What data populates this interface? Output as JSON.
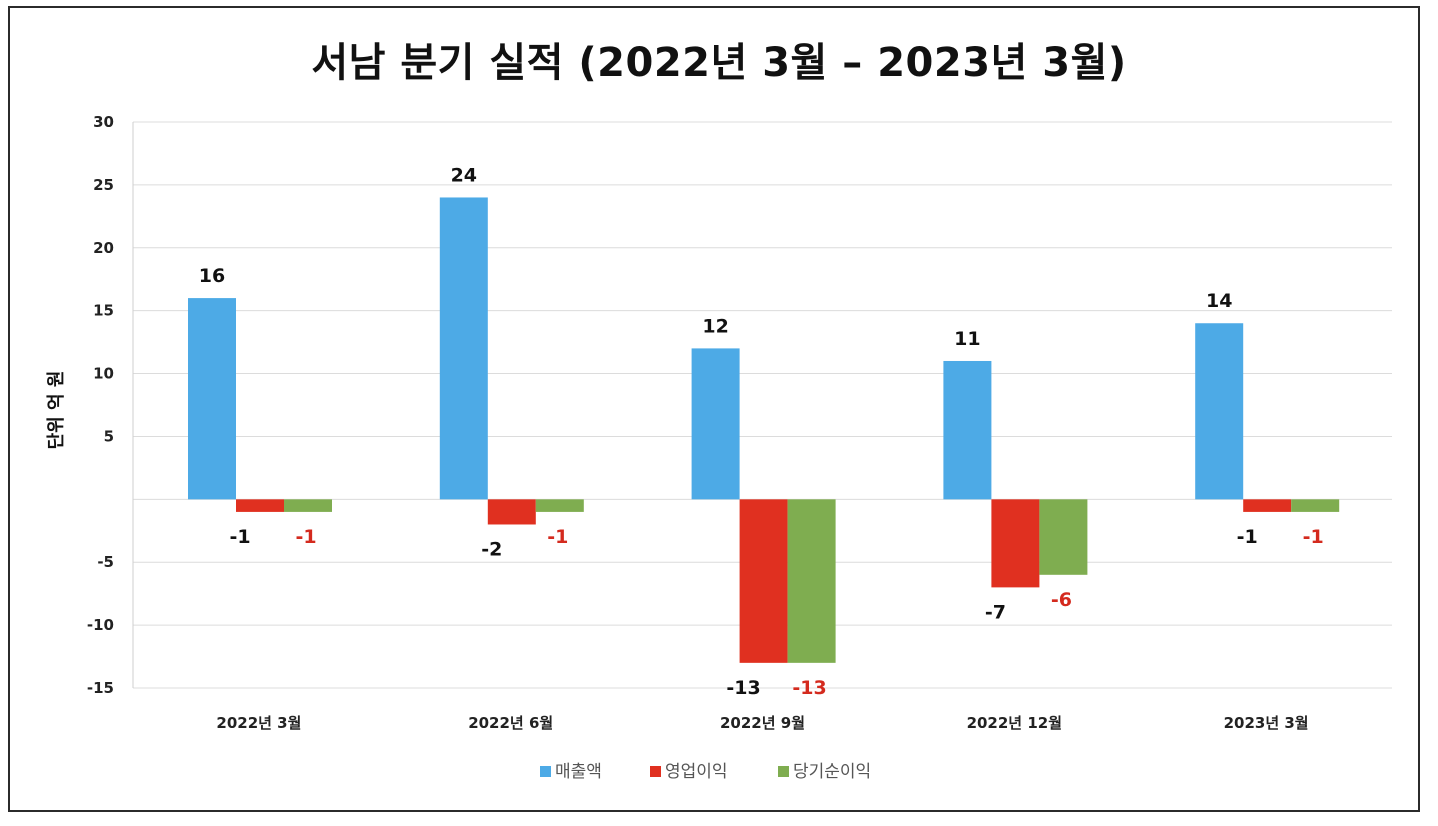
{
  "chart_data": {
    "type": "bar",
    "title": "서남 분기 실적 (2022년 3월 – 2023년 3월)",
    "ylabel": "단위 억 원",
    "xlabel": "",
    "categories": [
      "2022년 3월",
      "2022년 6월",
      "2022년 9월",
      "2022년 12월",
      "2023년 3월"
    ],
    "series": [
      {
        "name": "매출액",
        "color": "#4DAAE6",
        "label_color": "#111111",
        "values": [
          16,
          24,
          12,
          11,
          14
        ]
      },
      {
        "name": "영업이익",
        "color": "#E03020",
        "label_color": "#111111",
        "values": [
          -1,
          -2,
          -13,
          -7,
          -1
        ]
      },
      {
        "name": "당기순이익",
        "color": "#7FAD50",
        "label_color": "#D42A1E",
        "values": [
          -1,
          -1,
          -13,
          -6,
          -1
        ]
      }
    ],
    "ylim": [
      -15,
      30
    ],
    "yticks": [
      30,
      25,
      20,
      15,
      10,
      5,
      -5,
      -10,
      -15
    ],
    "grid": true,
    "legend_position": "bottom"
  }
}
